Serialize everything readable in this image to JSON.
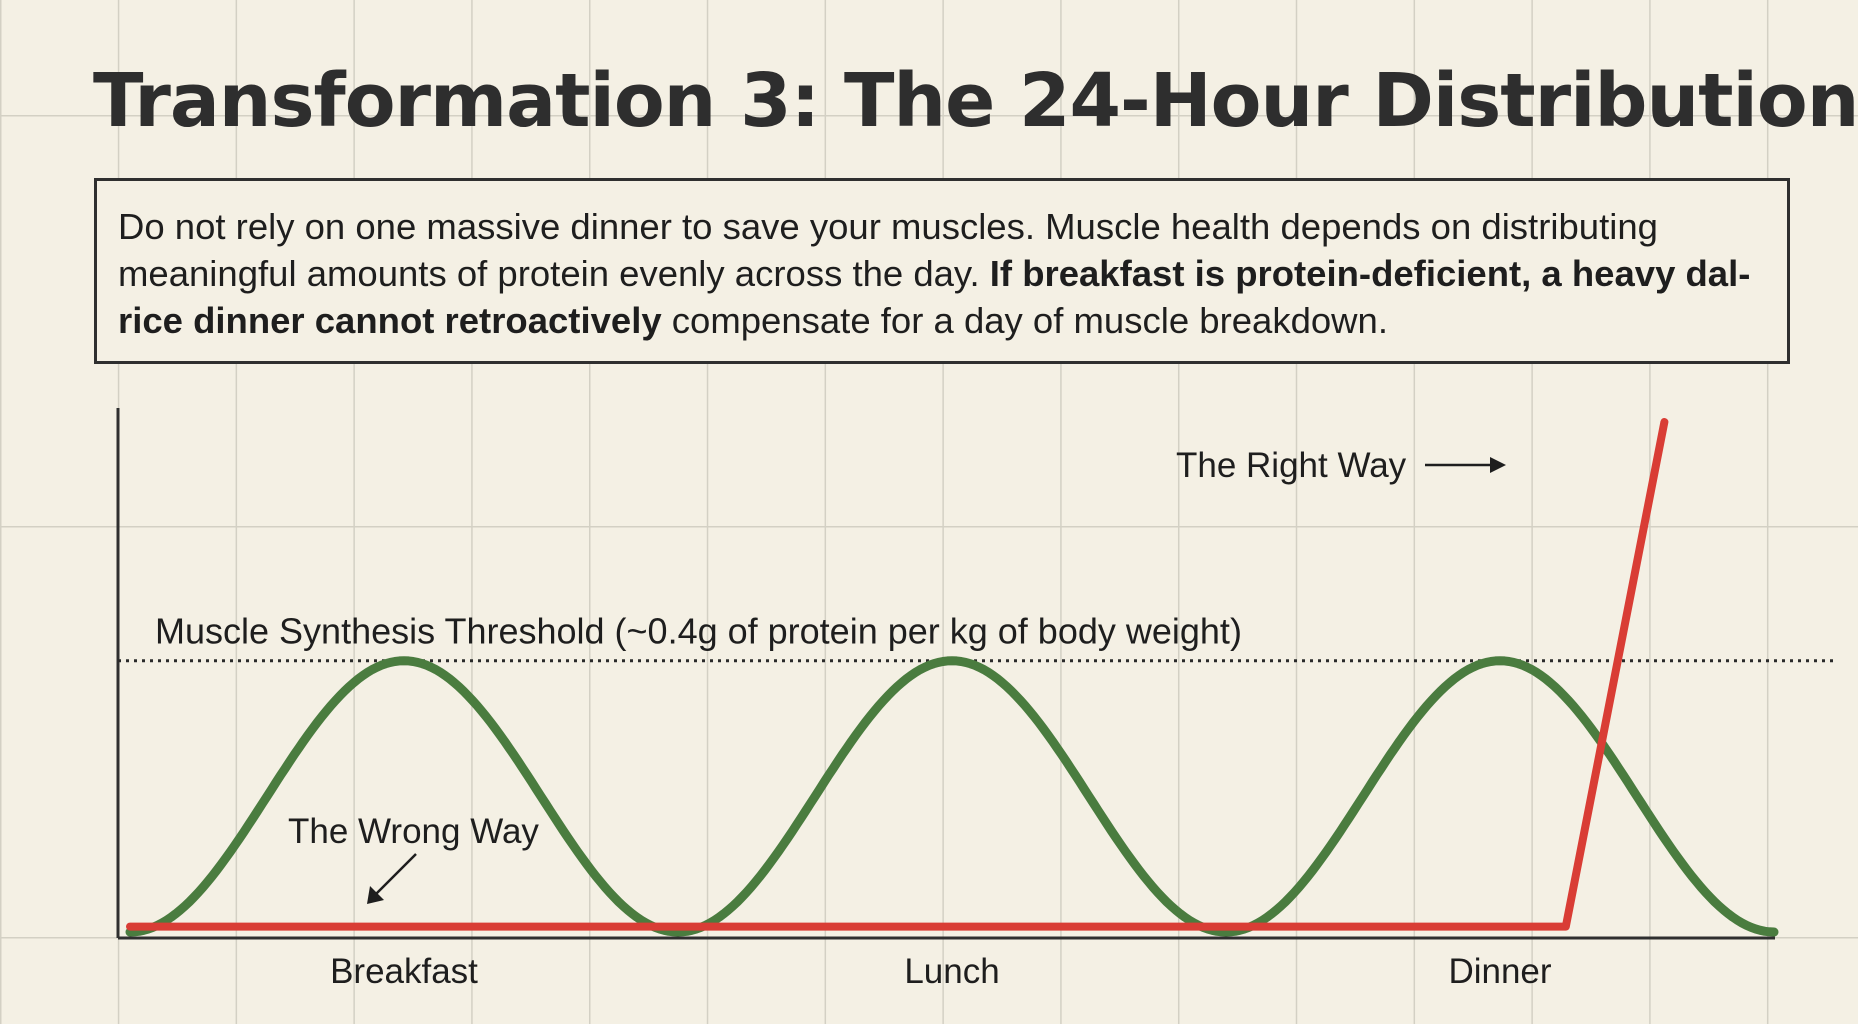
{
  "title": "Transformation 3: The 24-Hour Distribution",
  "description": {
    "part1": "Do not rely on one massive dinner to save your muscles. Muscle health depends on distributing meaningful amounts of protein evenly across the day. ",
    "part2_bold": "If breakfast is protein-deficient, a heavy dal-rice dinner cannot retroactively",
    "part3": " compensate for a day of muscle breakdown."
  },
  "chart_data": {
    "type": "line",
    "categories": [
      "Breakfast",
      "Lunch",
      "Dinner"
    ],
    "threshold": {
      "label": "Muscle Synthesis Threshold (~0.4g of protein per kg of body weight)",
      "value": 1.0
    },
    "annotations": {
      "right_way": "The Right Way",
      "wrong_way": "The Wrong Way"
    },
    "series": [
      {
        "key": "right",
        "color": "#4a7c3f",
        "x": [
          0,
          0.25,
          0.5,
          0.75,
          1.0,
          1.25,
          1.5,
          1.75,
          2.0,
          2.25,
          2.5,
          2.75,
          3.0
        ],
        "y": [
          0,
          0.5,
          1.0,
          0.5,
          0,
          0.5,
          1.0,
          0.5,
          0,
          0.5,
          1.0,
          0.5,
          0
        ]
      },
      {
        "key": "wrong",
        "color": "#d93d35",
        "x": [
          0,
          2.62,
          2.8
        ],
        "y": [
          0.02,
          0.02,
          1.88
        ]
      }
    ],
    "xlim": [
      0,
      3.0
    ],
    "ylim": [
      0,
      1.88
    ],
    "grid": true
  }
}
